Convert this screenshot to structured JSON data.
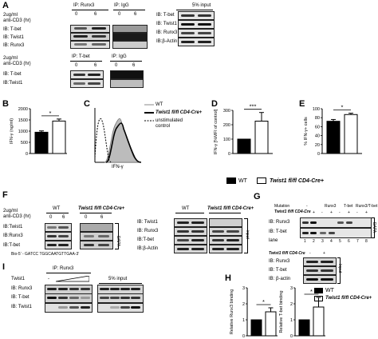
{
  "panelA": {
    "letter": "A",
    "left_cond": [
      "2ug/ml",
      "anti-CD3 (hr)"
    ],
    "ip_runx3": "IP: Runx3",
    "ip_igg": "IP: IgG",
    "t0": "0",
    "t6": "6",
    "ib_rows1": [
      "IB: T-bet",
      "IB: Twist1",
      "IB: Runx3"
    ],
    "input_label": "5% input",
    "ib_rows_input": [
      "IB: T-bet",
      "IB: Twist1",
      "IB: Runx3",
      "IB:β-Actin"
    ],
    "ip_tbet": "IP: T-bet",
    "ib_rows2": [
      "IB: T-bet",
      "IB:Twist1"
    ]
  },
  "panelB": {
    "letter": "B",
    "chart_data": {
      "type": "bar",
      "categories": [
        "WT",
        "Twist1 fl/fl CD4-Cre+"
      ],
      "values": [
        950,
        1450
      ],
      "errors": [
        60,
        90
      ],
      "ylabel": "IFN-γ (ng/ml)",
      "yticks": [
        0,
        500,
        1000,
        1500,
        2000
      ],
      "ylim": [
        0,
        2000
      ],
      "sig": "*"
    }
  },
  "panelC": {
    "letter": "C",
    "legend": [
      "WT",
      "Twist1 fl/fl CD4-Cre+",
      "unstimulated",
      "control"
    ],
    "xlabel": "IFN-γ",
    "chart_data": {
      "type": "area",
      "series": [
        {
          "name": "WT",
          "style": "thin solid"
        },
        {
          "name": "Twist1 fl/fl CD4-Cre+",
          "style": "thick solid"
        },
        {
          "name": "unstimulated control",
          "style": "dashed"
        }
      ],
      "xscale": "log"
    }
  },
  "panelD": {
    "letter": "D",
    "chart_data": {
      "type": "bar",
      "categories": [
        "WT",
        "Twist1 fl/fl CD4-Cre+"
      ],
      "values": [
        100,
        225
      ],
      "errors": [
        0,
        60
      ],
      "ylabel": "IFN-γ [%MFI of control]",
      "yticks": [
        0,
        100,
        200,
        300
      ],
      "ylim": [
        0,
        300
      ],
      "sig": "***"
    }
  },
  "panelE": {
    "letter": "E",
    "chart_data": {
      "type": "bar",
      "categories": [
        "WT",
        "Twist1 fl/fl CD4-Cre+"
      ],
      "values": [
        72,
        87
      ],
      "errors": [
        4,
        3
      ],
      "ylabel": "% IFN-γ+ cells",
      "yticks": [
        0,
        20,
        40,
        60,
        80,
        100
      ],
      "ylim": [
        0,
        100
      ],
      "sig": "*"
    }
  },
  "legendMid": {
    "wt": "WT",
    "ko": "Twist1 fl/fl CD4-Cre+"
  },
  "panelF": {
    "letter": "F",
    "cond": [
      "2ug/ml",
      "anti-CD3 (hr)"
    ],
    "wt": "WT",
    "ko": "Twist1 fl/fl CD4-Cre+",
    "t0": "0",
    "t6": "6",
    "ib_rows": [
      "IB:Twist1",
      "IB:Runx3",
      "IB:T-bet"
    ],
    "dapa": "DAPA",
    "probe_seq": "Bio-5’ - GATCC TGGCAATGTTGAA-3’",
    "ib_rows_input": [
      "IB: Twist1",
      "IB: Runx3",
      "IB:T-bet",
      "IB:β-Actin"
    ],
    "input": "input"
  },
  "panelG": {
    "letter": "G",
    "mutation": "Mutation",
    "genotype": "Twist1 fl/fl CD4-Cre",
    "mut_groups": [
      "-",
      "Runx3",
      "T-bet",
      "Runx3/T-bet"
    ],
    "geno_signs": [
      "-",
      "+",
      "-",
      "+",
      "-",
      "+",
      "-",
      "+"
    ],
    "ib_rows": [
      "IB: Runx3",
      "IB: T-bet"
    ],
    "lane": "lane",
    "lanes": [
      "1",
      "2",
      "3",
      "4",
      "5",
      "6",
      "7",
      "8"
    ],
    "dapa": "DAPA",
    "genotype2": "Twist1 fl/fl CD4-Cre",
    "geno2_signs": [
      "-",
      "+"
    ],
    "ib_rows_input": [
      "IB: Runx3",
      "IB: T-bet",
      "IB: β-actin"
    ],
    "input": "Input"
  },
  "panelI": {
    "letter": "I",
    "ip": "IP: Runx3",
    "twist": "Twist1",
    "dash": "-",
    "input": "5% input",
    "ib_rows": [
      "IB: Runx3",
      "IB: T-bet",
      "IB: Twist1"
    ]
  },
  "panelH": {
    "letter": "H",
    "legend": [
      "WT",
      "Twist1 fl/fl CD4-Cre+"
    ],
    "left": {
      "chart_data": {
        "type": "bar",
        "categories": [
          "WT",
          "Twist1 fl/fl CD4-Cre+"
        ],
        "values": [
          1.0,
          1.5
        ],
        "errors": [
          0,
          0.25
        ],
        "ylabel": "Relative Runx3 binding",
        "yticks": [
          0,
          1,
          2,
          3
        ],
        "ylim": [
          0,
          3
        ],
        "sig": "*"
      }
    },
    "right": {
      "chart_data": {
        "type": "bar",
        "categories": [
          "WT",
          "Twist1 fl/fl CD4-Cre+"
        ],
        "values": [
          1.0,
          1.8
        ],
        "errors": [
          0,
          0.6
        ],
        "ylabel": "Relative T-bet binding",
        "yticks": [
          0,
          1,
          2,
          3
        ],
        "ylim": [
          0,
          3
        ],
        "sig": "*"
      }
    }
  }
}
